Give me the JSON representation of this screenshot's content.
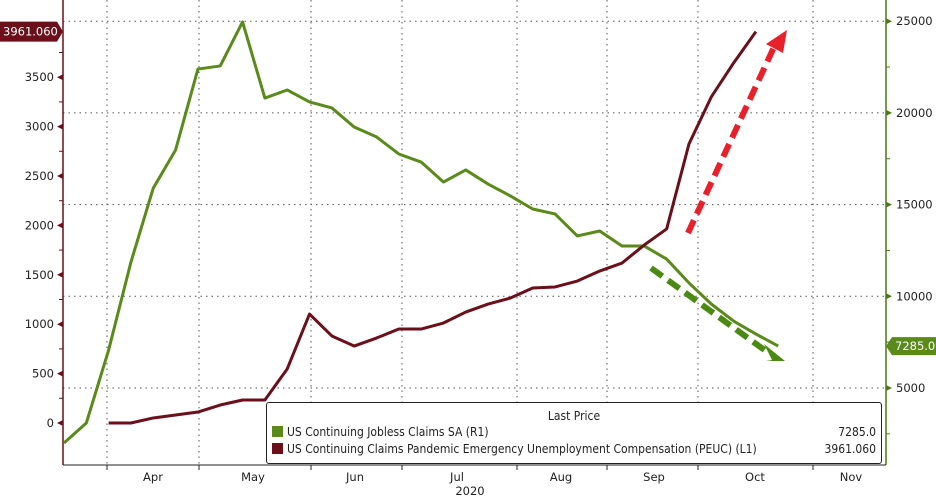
{
  "chart_data": {
    "type": "line",
    "title": "",
    "xlabel": "2020",
    "x_tick_labels": [
      "Apr",
      "May",
      "Jun",
      "Jul",
      "Aug",
      "Sep",
      "Oct",
      "Nov"
    ],
    "x_start": "2020-03-14",
    "x_frequency": "weekly",
    "left_axis": {
      "ticks": [
        0,
        500,
        1000,
        1500,
        2000,
        2500,
        3000,
        3500
      ],
      "range": [
        -250,
        4200
      ],
      "color": "#6b0f1a"
    },
    "right_axis": {
      "ticks": [
        5000,
        10000,
        15000,
        20000,
        25000
      ],
      "range": [
        1000,
        26100
      ],
      "color": "#4a7a12"
    },
    "grid": true,
    "legend_title": "Last Price",
    "legend_placement": "bottom-right",
    "series": [
      {
        "name": "US Continuing Jobless Claims SA  (R1)",
        "axis": "right",
        "color": "#5a8a1a",
        "last_value": "7285.0",
        "start_week": 0,
        "values": [
          2000,
          3090,
          7070,
          11870,
          15900,
          17980,
          22390,
          22560,
          24960,
          20810,
          21250,
          20600,
          20270,
          19230,
          18690,
          17760,
          17320,
          16230,
          16890,
          16120,
          15470,
          14760,
          14490,
          13290,
          13560,
          12740,
          12740,
          12030,
          10730,
          9580,
          8650,
          7940,
          7285
        ]
      },
      {
        "name": "US Continuing Claims Pandemic Emergency Unemployment Compensation (PEUC)  (L1)",
        "axis": "left",
        "color": "#6b0f1a",
        "last_value": "3961.060",
        "start_week": 2,
        "values": [
          0,
          0,
          51,
          81,
          111,
          182,
          233,
          233,
          547,
          1103,
          881,
          779,
          860,
          951,
          951,
          1012,
          1123,
          1204,
          1265,
          1366,
          1377,
          1437,
          1538,
          1619,
          1802,
          1964,
          2824,
          3300,
          3644,
          3961.06
        ]
      }
    ],
    "annotations": [
      {
        "type": "arrow",
        "direction": "up",
        "color": "#e8202a"
      },
      {
        "type": "arrow",
        "direction": "down",
        "color": "#4a8a12"
      }
    ]
  }
}
